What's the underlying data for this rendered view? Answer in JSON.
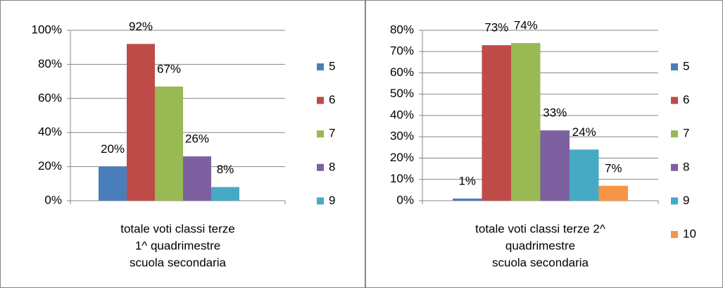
{
  "chart_data": [
    {
      "type": "bar",
      "categories": [
        [
          "totale voti classi terze",
          "1^ quadrimestre",
          "scuola secondaria"
        ]
      ],
      "series": [
        {
          "name": "5",
          "color": "#4a7ebb",
          "values": [
            20
          ],
          "value_labels": [
            "20%"
          ]
        },
        {
          "name": "6",
          "color": "#be4b48",
          "values": [
            92
          ],
          "value_labels": [
            "92%"
          ]
        },
        {
          "name": "7",
          "color": "#98b954",
          "values": [
            67
          ],
          "value_labels": [
            "67%"
          ]
        },
        {
          "name": "8",
          "color": "#7d60a0",
          "values": [
            26
          ],
          "value_labels": [
            "26%"
          ]
        },
        {
          "name": "9",
          "color": "#46aac5",
          "values": [
            8
          ],
          "value_labels": [
            "8%"
          ]
        }
      ],
      "ylim": [
        0,
        100
      ],
      "yticks": [
        {
          "value": 0,
          "label": "0%"
        },
        {
          "value": 20,
          "label": "20%"
        },
        {
          "value": 40,
          "label": "40%"
        },
        {
          "value": 60,
          "label": "60%"
        },
        {
          "value": 80,
          "label": "80%"
        },
        {
          "value": 100,
          "label": "100%"
        }
      ],
      "grid": true,
      "legend": "right"
    },
    {
      "type": "bar",
      "categories": [
        [
          "totale voti classi terze        2^",
          "quadrimestre",
          "scuola secondaria"
        ]
      ],
      "series": [
        {
          "name": "5",
          "color": "#4a7ebb",
          "values": [
            1
          ],
          "value_labels": [
            "1%"
          ]
        },
        {
          "name": "6",
          "color": "#be4b48",
          "values": [
            73
          ],
          "value_labels": [
            "73%"
          ]
        },
        {
          "name": "7",
          "color": "#98b954",
          "values": [
            74
          ],
          "value_labels": [
            "74%"
          ]
        },
        {
          "name": "8",
          "color": "#7d60a0",
          "values": [
            33
          ],
          "value_labels": [
            "33%"
          ]
        },
        {
          "name": "9",
          "color": "#46aac5",
          "values": [
            24
          ],
          "value_labels": [
            "24%"
          ]
        },
        {
          "name": "10",
          "color": "#f79646",
          "values": [
            7
          ],
          "value_labels": [
            "7%"
          ]
        }
      ],
      "ylim": [
        0,
        80
      ],
      "yticks": [
        {
          "value": 0,
          "label": "0%"
        },
        {
          "value": 10,
          "label": "10%"
        },
        {
          "value": 20,
          "label": "20%"
        },
        {
          "value": 30,
          "label": "30%"
        },
        {
          "value": 40,
          "label": "40%"
        },
        {
          "value": 50,
          "label": "50%"
        },
        {
          "value": 60,
          "label": "60%"
        },
        {
          "value": 70,
          "label": "70%"
        },
        {
          "value": 80,
          "label": "80%"
        }
      ],
      "grid": true,
      "legend": "right"
    }
  ]
}
